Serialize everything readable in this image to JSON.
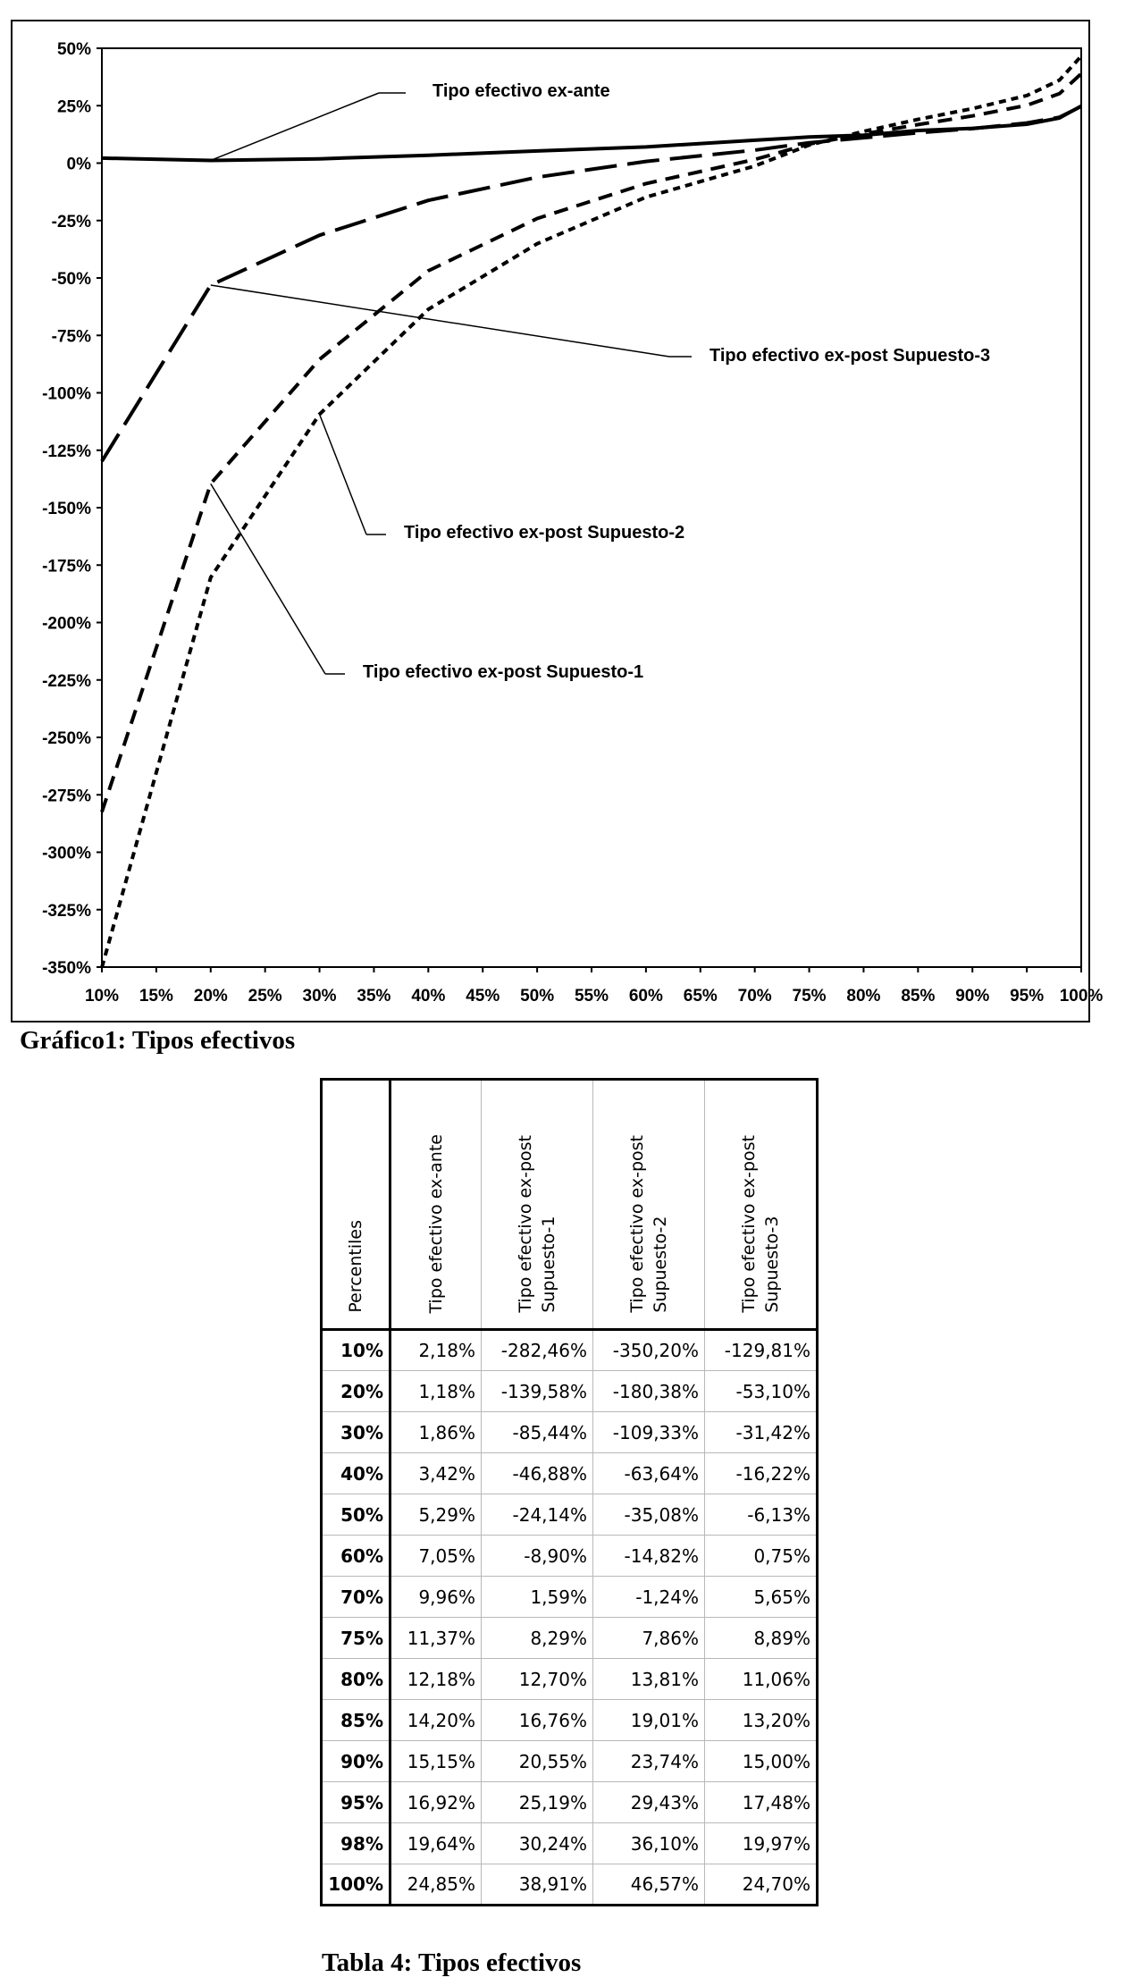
{
  "figure_caption": "Gráfico1: Tipos efectivos",
  "table_caption": "Tabla 4: Tipos efectivos",
  "chart_data": {
    "type": "line",
    "x": [
      10,
      20,
      30,
      40,
      50,
      60,
      70,
      75,
      80,
      85,
      90,
      95,
      98,
      100
    ],
    "x_tick_labels": [
      "10%",
      "15%",
      "20%",
      "25%",
      "30%",
      "35%",
      "40%",
      "45%",
      "50%",
      "55%",
      "60%",
      "65%",
      "70%",
      "75%",
      "80%",
      "85%",
      "90%",
      "95%",
      "100%"
    ],
    "x_ticks": [
      10,
      15,
      20,
      25,
      30,
      35,
      40,
      45,
      50,
      55,
      60,
      65,
      70,
      75,
      80,
      85,
      90,
      95,
      100
    ],
    "y_tick_labels": [
      "50%",
      "25%",
      "0%",
      "-25%",
      "-50%",
      "-75%",
      "-100%",
      "-125%",
      "-150%",
      "-175%",
      "-200%",
      "-225%",
      "-250%",
      "-275%",
      "-300%",
      "-325%",
      "-350%"
    ],
    "y_ticks": [
      50,
      25,
      0,
      -25,
      -50,
      -75,
      -100,
      -125,
      -150,
      -175,
      -200,
      -225,
      -250,
      -275,
      -300,
      -325,
      -350
    ],
    "xlim": [
      10,
      100
    ],
    "ylim": [
      -350,
      50
    ],
    "grid": false,
    "series": [
      {
        "name": "Tipo efectivo ex-ante",
        "style": "solid",
        "values": [
          2.18,
          1.18,
          1.86,
          3.42,
          5.29,
          7.05,
          9.96,
          11.37,
          12.18,
          14.2,
          15.15,
          16.92,
          19.64,
          24.85
        ]
      },
      {
        "name": "Tipo efectivo ex-post Supuesto-1",
        "style": "dashed",
        "values": [
          -282.46,
          -139.58,
          -85.44,
          -46.88,
          -24.14,
          -8.9,
          1.59,
          8.29,
          12.7,
          16.76,
          20.55,
          25.19,
          30.24,
          38.91
        ]
      },
      {
        "name": "Tipo efectivo ex-post Supuesto-2",
        "style": "dotted",
        "values": [
          -350.2,
          -180.38,
          -109.33,
          -63.64,
          -35.08,
          -14.82,
          -1.24,
          7.86,
          13.81,
          19.01,
          23.74,
          29.43,
          36.1,
          46.57
        ]
      },
      {
        "name": "Tipo efectivo ex-post Supuesto-3",
        "style": "long-dash",
        "values": [
          -129.81,
          -53.1,
          -31.42,
          -16.22,
          -6.13,
          0.75,
          5.65,
          8.89,
          11.06,
          13.2,
          15.0,
          17.48,
          19.97,
          24.7
        ]
      }
    ],
    "annotations": [
      {
        "text": "Tipo efectivo ex-ante",
        "series": 0,
        "point_x": 20
      },
      {
        "text": "Tipo efectivo ex-post Supuesto-3",
        "series": 3,
        "point_x": 20
      },
      {
        "text": "Tipo efectivo ex-post Supuesto-2",
        "series": 2,
        "point_x": 30
      },
      {
        "text": "Tipo efectivo ex-post Supuesto-1",
        "series": 1,
        "point_x": 20
      }
    ]
  },
  "table": {
    "headers": [
      "Percentiles",
      "Tipo efectivo ex-ante",
      "Tipo efectivo ex-post\nSupuesto-1",
      "Tipo efectivo ex-post\nSupuesto-2",
      "Tipo efectivo ex-post\nSupuesto-3"
    ],
    "rows": [
      [
        "10%",
        "2,18%",
        "-282,46%",
        "-350,20%",
        "-129,81%"
      ],
      [
        "20%",
        "1,18%",
        "-139,58%",
        "-180,38%",
        "-53,10%"
      ],
      [
        "30%",
        "1,86%",
        "-85,44%",
        "-109,33%",
        "-31,42%"
      ],
      [
        "40%",
        "3,42%",
        "-46,88%",
        "-63,64%",
        "-16,22%"
      ],
      [
        "50%",
        "5,29%",
        "-24,14%",
        "-35,08%",
        "-6,13%"
      ],
      [
        "60%",
        "7,05%",
        "-8,90%",
        "-14,82%",
        "0,75%"
      ],
      [
        "70%",
        "9,96%",
        "1,59%",
        "-1,24%",
        "5,65%"
      ],
      [
        "75%",
        "11,37%",
        "8,29%",
        "7,86%",
        "8,89%"
      ],
      [
        "80%",
        "12,18%",
        "12,70%",
        "13,81%",
        "11,06%"
      ],
      [
        "85%",
        "14,20%",
        "16,76%",
        "19,01%",
        "13,20%"
      ],
      [
        "90%",
        "15,15%",
        "20,55%",
        "23,74%",
        "15,00%"
      ],
      [
        "95%",
        "16,92%",
        "25,19%",
        "29,43%",
        "17,48%"
      ],
      [
        "98%",
        "19,64%",
        "30,24%",
        "36,10%",
        "19,97%"
      ],
      [
        "100%",
        "24,85%",
        "38,91%",
        "46,57%",
        "24,70%"
      ]
    ]
  }
}
